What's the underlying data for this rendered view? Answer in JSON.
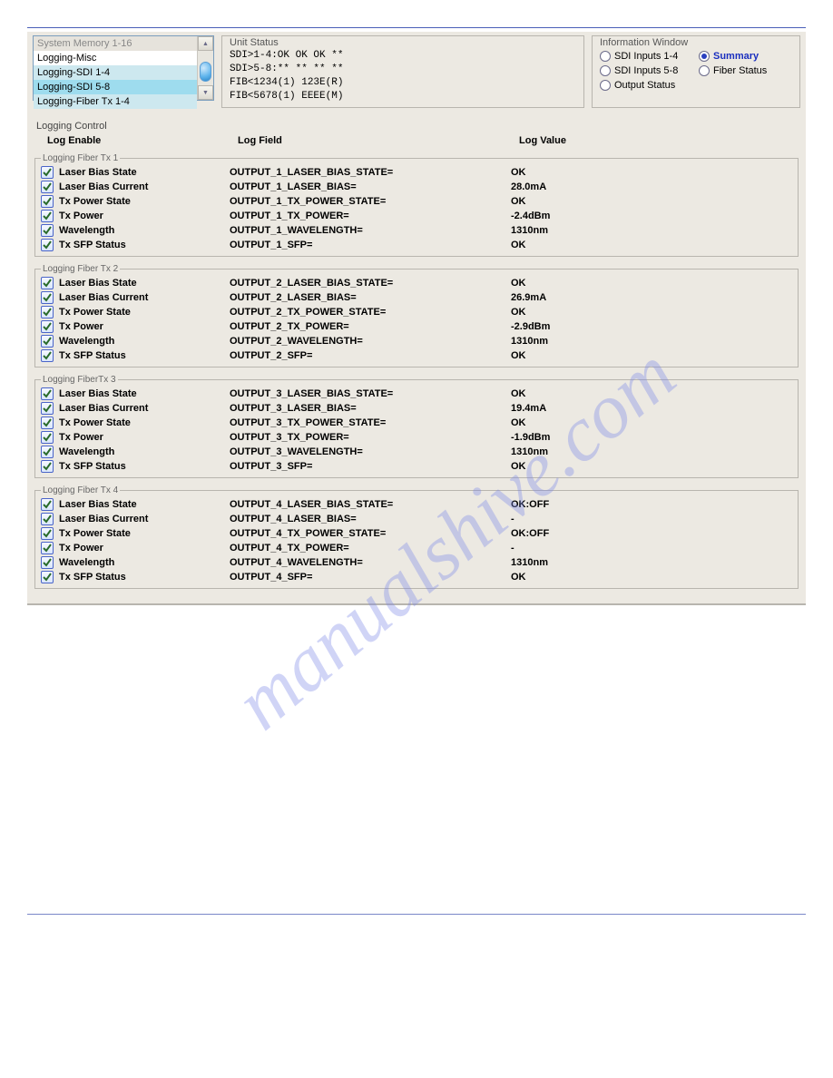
{
  "colors": {
    "panel_bg": "#ece9e2",
    "panel_border": "#b8b5ae",
    "accent": "#2a3fbf",
    "rule": "#4a5fb8",
    "watermark": "#7a87e8"
  },
  "listbox": {
    "items": [
      {
        "label": "System Memory 1-16",
        "class": "dim"
      },
      {
        "label": "Logging-Misc",
        "class": ""
      },
      {
        "label": "Logging-SDI 1-4",
        "class": "sel1"
      },
      {
        "label": "Logging-SDI 5-8",
        "class": "sel2"
      },
      {
        "label": "Logging-Fiber Tx 1-4",
        "class": "sel3"
      }
    ]
  },
  "unit_status": {
    "title": "Unit Status",
    "lines": [
      "SDI>1-4:OK OK OK **",
      "SDI>5-8:** ** ** **",
      "FIB<1234(1) 123E(R)",
      "FIB<5678(1) EEEE(M)"
    ]
  },
  "info_window": {
    "title": "Information Window",
    "options": [
      {
        "label": "SDI Inputs 1-4",
        "selected": false
      },
      {
        "label": "Summary",
        "selected": true
      },
      {
        "label": "SDI Inputs 5-8",
        "selected": false
      },
      {
        "label": "Fiber Status",
        "selected": false
      },
      {
        "label": "Output Status",
        "selected": false
      }
    ]
  },
  "logging_control": {
    "title": "Logging Control",
    "headers": {
      "enable": "Log Enable",
      "field": "Log Field",
      "value": "Log Value"
    }
  },
  "groups": [
    {
      "title": "Logging Fiber Tx 1",
      "rows": [
        {
          "label": "Laser Bias State",
          "field": "OUTPUT_1_LASER_BIAS_STATE=",
          "value": "OK"
        },
        {
          "label": "Laser Bias Current",
          "field": "OUTPUT_1_LASER_BIAS=",
          "value": "28.0mA"
        },
        {
          "label": "Tx Power State",
          "field": "OUTPUT_1_TX_POWER_STATE=",
          "value": "OK"
        },
        {
          "label": "Tx Power",
          "field": "OUTPUT_1_TX_POWER=",
          "value": "-2.4dBm"
        },
        {
          "label": "Wavelength",
          "field": "OUTPUT_1_WAVELENGTH=",
          "value": "1310nm"
        },
        {
          "label": "Tx SFP Status",
          "field": "OUTPUT_1_SFP=",
          "value": "OK"
        }
      ]
    },
    {
      "title": "Logging Fiber Tx 2",
      "rows": [
        {
          "label": "Laser Bias State",
          "field": "OUTPUT_2_LASER_BIAS_STATE=",
          "value": "OK"
        },
        {
          "label": "Laser Bias Current",
          "field": "OUTPUT_2_LASER_BIAS=",
          "value": "26.9mA"
        },
        {
          "label": "Tx Power State",
          "field": "OUTPUT_2_TX_POWER_STATE=",
          "value": "OK"
        },
        {
          "label": "Tx Power",
          "field": "OUTPUT_2_TX_POWER=",
          "value": "-2.9dBm"
        },
        {
          "label": "Wavelength",
          "field": "OUTPUT_2_WAVELENGTH=",
          "value": "1310nm"
        },
        {
          "label": "Tx SFP Status",
          "field": "OUTPUT_2_SFP=",
          "value": "OK"
        }
      ]
    },
    {
      "title": "Logging FiberTx 3",
      "rows": [
        {
          "label": "Laser Bias State",
          "field": "OUTPUT_3_LASER_BIAS_STATE=",
          "value": "OK"
        },
        {
          "label": "Laser Bias Current",
          "field": "OUTPUT_3_LASER_BIAS=",
          "value": "19.4mA"
        },
        {
          "label": "Tx Power State",
          "field": "OUTPUT_3_TX_POWER_STATE=",
          "value": "OK"
        },
        {
          "label": "Tx Power",
          "field": "OUTPUT_3_TX_POWER=",
          "value": "-1.9dBm"
        },
        {
          "label": "Wavelength",
          "field": "OUTPUT_3_WAVELENGTH=",
          "value": "1310nm"
        },
        {
          "label": "Tx SFP Status",
          "field": "OUTPUT_3_SFP=",
          "value": "OK"
        }
      ]
    },
    {
      "title": "Logging Fiber Tx 4",
      "rows": [
        {
          "label": "Laser Bias State",
          "field": "OUTPUT_4_LASER_BIAS_STATE=",
          "value": "OK:OFF"
        },
        {
          "label": "Laser Bias Current",
          "field": "OUTPUT_4_LASER_BIAS=",
          "value": "-"
        },
        {
          "label": "Tx Power State",
          "field": "OUTPUT_4_TX_POWER_STATE=",
          "value": "OK:OFF"
        },
        {
          "label": "Tx Power",
          "field": "OUTPUT_4_TX_POWER=",
          "value": "-"
        },
        {
          "label": "Wavelength",
          "field": "OUTPUT_4_WAVELENGTH=",
          "value": "1310nm"
        },
        {
          "label": "Tx SFP Status",
          "field": "OUTPUT_4_SFP=",
          "value": "OK"
        }
      ]
    }
  ],
  "watermark_text": "manualshive.com"
}
